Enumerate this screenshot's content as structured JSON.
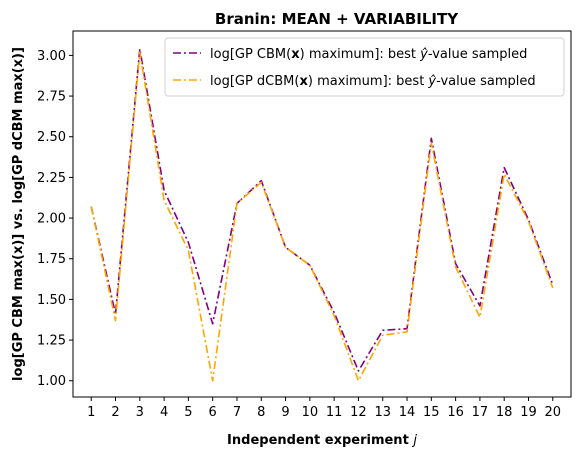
{
  "chart_data": {
    "type": "line",
    "title": "Branin: MEAN + VARIABILITY",
    "xlabel": "Independent experiment",
    "xlabel_var": "j",
    "ylabel": "log[GP CBM max(x)] vs. log[GP dCBM max(x)]",
    "x": [
      1,
      2,
      3,
      4,
      5,
      6,
      7,
      8,
      9,
      10,
      11,
      12,
      13,
      14,
      15,
      16,
      17,
      18,
      19,
      20
    ],
    "xlim": [
      0.25,
      20.75
    ],
    "ylim": [
      0.9,
      3.15
    ],
    "yticks": [
      1.0,
      1.25,
      1.5,
      1.75,
      2.0,
      2.25,
      2.5,
      2.75,
      3.0
    ],
    "ytick_labels": [
      "1.00",
      "1.25",
      "1.50",
      "1.75",
      "2.00",
      "2.25",
      "2.50",
      "2.75",
      "3.00"
    ],
    "grid": false,
    "legend_position": "top-right",
    "series": [
      {
        "name_prefix": "log[GP CBM(",
        "name_bold": "x",
        "name_mid": ") maximum]: best ",
        "name_symbol": "ŷ",
        "name_suffix": "-value sampled",
        "color": "#800080",
        "linestyle": "dashdot",
        "values": [
          2.07,
          1.41,
          3.04,
          2.17,
          1.85,
          1.35,
          2.09,
          2.23,
          1.82,
          1.71,
          1.42,
          1.06,
          1.31,
          1.32,
          2.49,
          1.72,
          1.46,
          2.31,
          1.99,
          1.59
        ]
      },
      {
        "name_prefix": "log[GP dCBM(",
        "name_bold": "x",
        "name_mid": ") maximum]: best ",
        "name_symbol": "ŷ",
        "name_suffix": "-value sampled",
        "color": "#FFA500",
        "linestyle": "dashdot",
        "values": [
          2.07,
          1.37,
          3.02,
          2.11,
          1.8,
          1.0,
          2.09,
          2.22,
          1.82,
          1.71,
          1.4,
          1.0,
          1.28,
          1.3,
          2.46,
          1.7,
          1.39,
          2.27,
          1.98,
          1.57
        ]
      }
    ]
  }
}
